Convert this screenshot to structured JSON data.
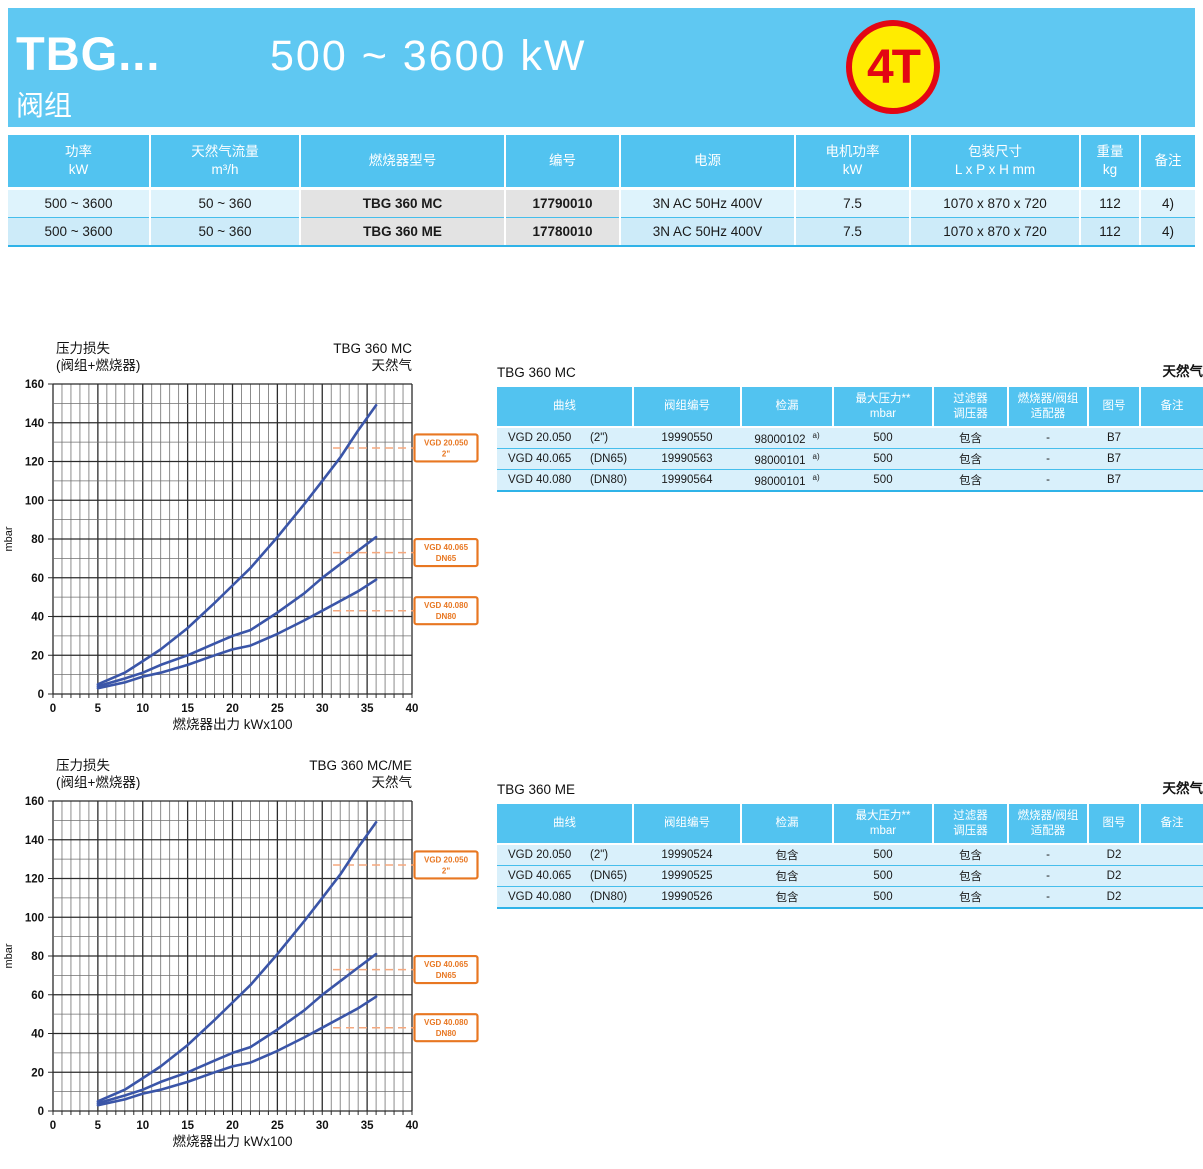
{
  "colors": {
    "header_bg": "#5FC8F2",
    "table_header_bg": "#52C3F0",
    "spec_row1_bg": "#DEF3FC",
    "spec_row2_bg": "#CDEBF9",
    "gray_cell_bg": "#E3E3E3",
    "data_row_bg": "#D9F0FB",
    "row_separator": "#45BEEC",
    "curve_blue": "#3A55A8",
    "callout_orange": "#E87722",
    "dash_orange": "#F5A87E",
    "badge_yellow": "#FFEC00",
    "badge_red": "#E30613",
    "grid_major": "#2b2b2b",
    "grid_minor": "#707070"
  },
  "header": {
    "title": "TBG...",
    "subtitle": "阀组",
    "power_range": "500  ~  3600 kW",
    "badge": "4T"
  },
  "spec_table": {
    "headers": [
      "功率\nkW",
      "天然气流量\nm³/h",
      "燃烧器型号",
      "编号",
      "电源",
      "电机功率\nkW",
      "包装尺寸\nL x P x H  mm",
      "重量\nkg",
      "备注"
    ],
    "gray_columns": [
      2,
      3
    ],
    "rows": [
      [
        "500 ~ 3600",
        "50 ~ 360",
        "TBG 360 MC",
        "17790010",
        "3N AC 50Hz 400V",
        "7.5",
        "1070 x 870 x 720",
        "112",
        "4)"
      ],
      [
        "500 ~ 3600",
        "50 ~ 360",
        "TBG 360 ME",
        "17780010",
        "3N AC 50Hz 400V",
        "7.5",
        "1070 x 870 x 720",
        "112",
        "4)"
      ]
    ]
  },
  "mc_table": {
    "title": "TBG 360 MC",
    "gas_label": "天然气",
    "headers": [
      "曲线",
      "阀组编号",
      "检漏",
      "最大压力**\nmbar",
      "过滤器\n调压器",
      "燃烧器/阀组\n适配器",
      "图号",
      "备注"
    ],
    "rows": [
      {
        "curve": "VGD 20.050",
        "size": "(2\")",
        "code": "19990550",
        "leak": "98000102",
        "leak_sup": "a)",
        "max_pressure": "500",
        "filter_regulator": "包含",
        "adapter": "-",
        "figure": "B7",
        "remark": ""
      },
      {
        "curve": "VGD 40.065",
        "size": "(DN65)",
        "code": "19990563",
        "leak": "98000101",
        "leak_sup": "a)",
        "max_pressure": "500",
        "filter_regulator": "包含",
        "adapter": "-",
        "figure": "B7",
        "remark": ""
      },
      {
        "curve": "VGD 40.080",
        "size": "(DN80)",
        "code": "19990564",
        "leak": "98000101",
        "leak_sup": "a)",
        "max_pressure": "500",
        "filter_regulator": "包含",
        "adapter": "-",
        "figure": "B7",
        "remark": ""
      }
    ]
  },
  "me_table": {
    "title": "TBG 360 ME",
    "gas_label": "天然气",
    "headers": [
      "曲线",
      "阀组编号",
      "检漏",
      "最大压力**\nmbar",
      "过滤器\n调压器",
      "燃烧器/阀组\n适配器",
      "图号",
      "备注"
    ],
    "rows": [
      {
        "curve": "VGD 20.050",
        "size": "(2\")",
        "code": "19990524",
        "leak": "包含",
        "leak_sup": "",
        "max_pressure": "500",
        "filter_regulator": "包含",
        "adapter": "-",
        "figure": "D2",
        "remark": ""
      },
      {
        "curve": "VGD 40.065",
        "size": "(DN65)",
        "code": "19990525",
        "leak": "包含",
        "leak_sup": "",
        "max_pressure": "500",
        "filter_regulator": "包含",
        "adapter": "-",
        "figure": "D2",
        "remark": ""
      },
      {
        "curve": "VGD 40.080",
        "size": "(DN80)",
        "code": "19990526",
        "leak": "包含",
        "leak_sup": "",
        "max_pressure": "500",
        "filter_regulator": "包含",
        "adapter": "-",
        "figure": "D2",
        "remark": ""
      }
    ]
  },
  "chart_data": [
    {
      "type": "line",
      "title_left": [
        "压力损失",
        "(阀组+燃烧器)"
      ],
      "title_right": [
        "TBG 360 MC",
        "天然气"
      ],
      "xlabel": "燃烧器出力  kWx100",
      "ylabel": "mbar",
      "xlim": [
        0,
        40
      ],
      "ylim": [
        0,
        160
      ],
      "xtick_step": 5,
      "ytick_step": 20,
      "minor_x_step": 1,
      "minor_y_step": 10,
      "grid": true,
      "series": [
        {
          "name": "VGD 20.050 2\"",
          "callout": [
            "VGD 20.050",
            "2\""
          ],
          "callout_value": 127,
          "points": [
            [
              5,
              5
            ],
            [
              8,
              11
            ],
            [
              10,
              17
            ],
            [
              12,
              23
            ],
            [
              15,
              34
            ],
            [
              18,
              47
            ],
            [
              20,
              56
            ],
            [
              22,
              65
            ],
            [
              25,
              81
            ],
            [
              28,
              98
            ],
            [
              30,
              110
            ],
            [
              32,
              122
            ],
            [
              34,
              136
            ],
            [
              36,
              149
            ]
          ]
        },
        {
          "name": "VGD 40.065 DN65",
          "callout": [
            "VGD 40.065",
            "DN65"
          ],
          "callout_value": 73,
          "points": [
            [
              5,
              4
            ],
            [
              8,
              8
            ],
            [
              10,
              11
            ],
            [
              12,
              15
            ],
            [
              15,
              20
            ],
            [
              18,
              26
            ],
            [
              20,
              30
            ],
            [
              22,
              33
            ],
            [
              25,
              42
            ],
            [
              28,
              52
            ],
            [
              30,
              60
            ],
            [
              32,
              67
            ],
            [
              34,
              74
            ],
            [
              36,
              81
            ]
          ]
        },
        {
          "name": "VGD 40.080 DN80",
          "callout": [
            "VGD 40.080",
            "DN80"
          ],
          "callout_value": 43,
          "points": [
            [
              5,
              3
            ],
            [
              8,
              6
            ],
            [
              10,
              9
            ],
            [
              12,
              11
            ],
            [
              15,
              15
            ],
            [
              18,
              20
            ],
            [
              20,
              23
            ],
            [
              22,
              25
            ],
            [
              25,
              31
            ],
            [
              28,
              38
            ],
            [
              30,
              43
            ],
            [
              32,
              48
            ],
            [
              34,
              53
            ],
            [
              36,
              59
            ]
          ]
        }
      ]
    },
    {
      "type": "line",
      "title_left": [
        "压力损失",
        "(阀组+燃烧器)"
      ],
      "title_right": [
        "TBG 360 MC/ME",
        "天然气"
      ],
      "xlabel": "燃烧器出力  kWx100",
      "ylabel": "mbar",
      "xlim": [
        0,
        40
      ],
      "ylim": [
        0,
        160
      ],
      "xtick_step": 5,
      "ytick_step": 20,
      "minor_x_step": 1,
      "minor_y_step": 10,
      "grid": true,
      "series": [
        {
          "name": "VGD 20.050 2\"",
          "callout": [
            "VGD 20.050",
            "2\""
          ],
          "callout_value": 127,
          "points": [
            [
              5,
              5
            ],
            [
              8,
              11
            ],
            [
              10,
              17
            ],
            [
              12,
              23
            ],
            [
              15,
              34
            ],
            [
              18,
              47
            ],
            [
              20,
              56
            ],
            [
              22,
              65
            ],
            [
              25,
              81
            ],
            [
              28,
              98
            ],
            [
              30,
              110
            ],
            [
              32,
              122
            ],
            [
              34,
              136
            ],
            [
              36,
              149
            ]
          ]
        },
        {
          "name": "VGD 40.065 DN65",
          "callout": [
            "VGD 40.065",
            "DN65"
          ],
          "callout_value": 73,
          "points": [
            [
              5,
              4
            ],
            [
              8,
              8
            ],
            [
              10,
              11
            ],
            [
              12,
              15
            ],
            [
              15,
              20
            ],
            [
              18,
              26
            ],
            [
              20,
              30
            ],
            [
              22,
              33
            ],
            [
              25,
              42
            ],
            [
              28,
              52
            ],
            [
              30,
              60
            ],
            [
              32,
              67
            ],
            [
              34,
              74
            ],
            [
              36,
              81
            ]
          ]
        },
        {
          "name": "VGD 40.080 DN80",
          "callout": [
            "VGD 40.080",
            "DN80"
          ],
          "callout_value": 43,
          "points": [
            [
              5,
              3
            ],
            [
              8,
              6
            ],
            [
              10,
              9
            ],
            [
              12,
              11
            ],
            [
              15,
              15
            ],
            [
              18,
              20
            ],
            [
              20,
              23
            ],
            [
              22,
              25
            ],
            [
              25,
              31
            ],
            [
              28,
              38
            ],
            [
              30,
              43
            ],
            [
              32,
              48
            ],
            [
              34,
              53
            ],
            [
              36,
              59
            ]
          ]
        }
      ]
    }
  ]
}
